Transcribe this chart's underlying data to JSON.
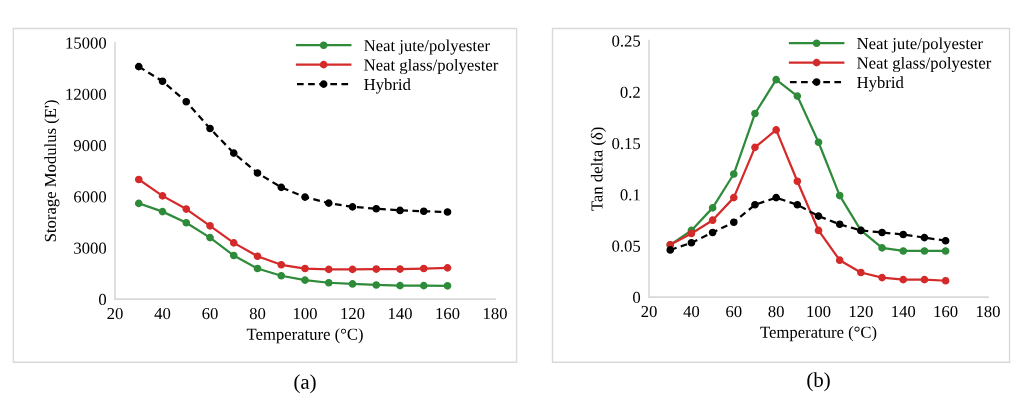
{
  "chart_data": [
    {
      "type": "line",
      "xlabel": "Temperature (°C)",
      "ylabel": "Storage Modulus (E')",
      "annotations": [
        "(a)"
      ],
      "x": [
        30,
        40,
        50,
        60,
        70,
        80,
        90,
        100,
        110,
        120,
        130,
        140,
        150,
        160
      ],
      "xlim": [
        20,
        180
      ],
      "xticks": [
        20,
        40,
        60,
        80,
        100,
        120,
        140,
        160,
        180
      ],
      "ylim": [
        0,
        15000
      ],
      "yticks": [
        0,
        3000,
        6000,
        9000,
        12000,
        15000
      ],
      "grid": false,
      "legend": "top right",
      "marker": "circle",
      "series": [
        {
          "name": "Neat jute/polyester",
          "color": "#2e8b3a",
          "line_style": "solid",
          "values": [
            5600,
            5120,
            4470,
            3600,
            2550,
            1790,
            1370,
            1110,
            960,
            890,
            830,
            790,
            790,
            780
          ]
        },
        {
          "name": "Neat glass/polyester",
          "color": "#d42a2a",
          "line_style": "solid",
          "values": [
            7000,
            6040,
            5270,
            4290,
            3290,
            2510,
            2010,
            1790,
            1740,
            1740,
            1760,
            1760,
            1790,
            1830
          ]
        },
        {
          "name": "Hybrid",
          "color": "#000000",
          "line_style": "dashed",
          "values": [
            13600,
            12750,
            11550,
            9980,
            8540,
            7380,
            6540,
            5970,
            5620,
            5400,
            5290,
            5190,
            5140,
            5100
          ]
        }
      ]
    },
    {
      "type": "line",
      "xlabel": "Temperature (°C)",
      "ylabel": "Tan delta (δ)",
      "annotations": [
        "(b)"
      ],
      "x": [
        30,
        40,
        50,
        60,
        70,
        80,
        90,
        100,
        110,
        120,
        130,
        140,
        150,
        160
      ],
      "xlim": [
        20,
        180
      ],
      "xticks": [
        20,
        40,
        60,
        80,
        100,
        120,
        140,
        160,
        180
      ],
      "ylim": [
        0,
        0.25
      ],
      "yticks": [
        0,
        0.05,
        0.1,
        0.15,
        0.2,
        0.25
      ],
      "grid": false,
      "legend": "top right",
      "marker": "circle",
      "series": [
        {
          "name": "Neat jute/polyester",
          "color": "#2e8b3a",
          "line_style": "solid",
          "values": [
            0.051,
            0.065,
            0.087,
            0.12,
            0.179,
            0.212,
            0.196,
            0.151,
            0.099,
            0.065,
            0.048,
            0.045,
            0.045,
            0.045
          ]
        },
        {
          "name": "Neat glass/polyester",
          "color": "#d42a2a",
          "line_style": "solid",
          "values": [
            0.051,
            0.062,
            0.075,
            0.097,
            0.146,
            0.163,
            0.113,
            0.065,
            0.036,
            0.024,
            0.019,
            0.017,
            0.017,
            0.016
          ]
        },
        {
          "name": "Hybrid",
          "color": "#000000",
          "line_style": "dashed",
          "values": [
            0.046,
            0.053,
            0.063,
            0.073,
            0.09,
            0.097,
            0.09,
            0.079,
            0.071,
            0.065,
            0.063,
            0.061,
            0.058,
            0.055
          ]
        }
      ]
    }
  ]
}
